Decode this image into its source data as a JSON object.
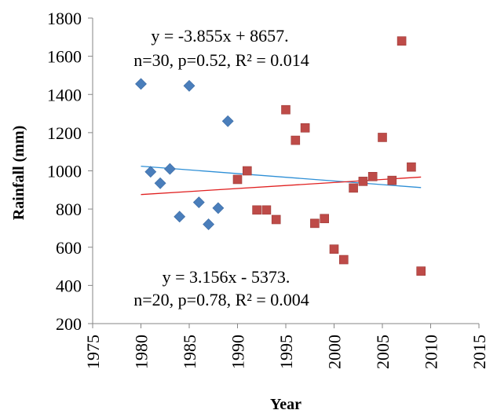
{
  "chart_data": {
    "type": "scatter",
    "xlabel": "Year",
    "ylabel": "Rainfall (mm)",
    "xlim": [
      1975,
      2015
    ],
    "ylim": [
      200,
      1800
    ],
    "x_ticks": [
      1975,
      1980,
      1985,
      1990,
      1995,
      2000,
      2005,
      2010,
      2015
    ],
    "y_ticks": [
      200,
      400,
      600,
      800,
      1000,
      1200,
      1400,
      1600,
      1800
    ],
    "grid": false,
    "series": [
      {
        "marker": "diamond",
        "color": "#4a7ebb",
        "points": [
          [
            1980,
            1455
          ],
          [
            1981,
            995
          ],
          [
            1982,
            935
          ],
          [
            1983,
            1010
          ],
          [
            1984,
            760
          ],
          [
            1985,
            1445
          ],
          [
            1986,
            835
          ],
          [
            1987,
            720
          ],
          [
            1988,
            805
          ],
          [
            1989,
            1260
          ]
        ],
        "trendline": {
          "slope": -3.855,
          "intercept": 8657,
          "x_range": [
            1980,
            2009
          ],
          "color": "#2e8fd6"
        }
      },
      {
        "marker": "square",
        "color": "#be4b48",
        "points": [
          [
            1990,
            955
          ],
          [
            1991,
            1000
          ],
          [
            1992,
            795
          ],
          [
            1993,
            795
          ],
          [
            1994,
            745
          ],
          [
            1995,
            1320
          ],
          [
            1996,
            1160
          ],
          [
            1997,
            1225
          ],
          [
            1998,
            725
          ],
          [
            1999,
            750
          ],
          [
            2000,
            590
          ],
          [
            2001,
            535
          ],
          [
            2002,
            910
          ],
          [
            2003,
            945
          ],
          [
            2004,
            970
          ],
          [
            2005,
            1175
          ],
          [
            2006,
            950
          ],
          [
            2007,
            1680
          ],
          [
            2008,
            1020
          ],
          [
            2009,
            475
          ]
        ],
        "trendline": {
          "slope": 3.156,
          "intercept": -5373,
          "x_range": [
            1980,
            2009
          ],
          "color": "#e02020"
        }
      }
    ],
    "annotations": [
      {
        "line1": "y = -3.855x + 8657.",
        "line2": "n=30, p=0.52, R² = 0.014"
      },
      {
        "line1": "y = 3.156x - 5373.",
        "line2": "n=20, p=0.78, R² = 0.004"
      }
    ]
  }
}
